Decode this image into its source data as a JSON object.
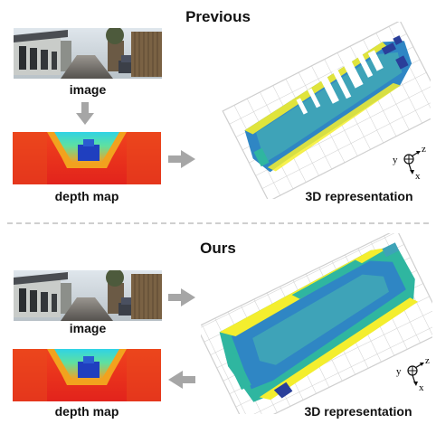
{
  "previous": {
    "title": "Previous",
    "image_label": "image",
    "depth_label": "depth map",
    "rep_label": "3D representation"
  },
  "ours": {
    "title": "Ours",
    "image_label": "image",
    "depth_label": "depth map",
    "rep_label": "3D representation"
  },
  "axes": {
    "y": "y",
    "z": "z",
    "x": "x"
  },
  "colors": {
    "arrow": "#a6a6a6",
    "grid": "#cfcfcf",
    "divider": "#cfcfcf",
    "depth_far": "#e8301c",
    "depth_mid": "#34c8e0",
    "depth_near": "#1f3fbf",
    "rep_blue": "#2f86c4",
    "rep_teal": "#2fb6a0",
    "rep_yellow": "#f4ee2e",
    "rep_navy": "#2a3f9a"
  }
}
